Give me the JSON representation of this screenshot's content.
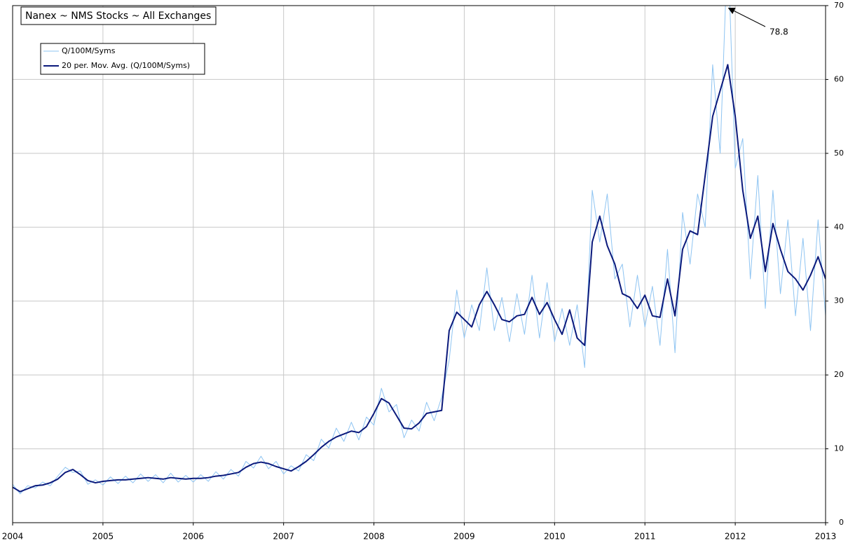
{
  "chart_data": {
    "type": "line",
    "title": "Nanex ~ NMS Stocks ~ All Exchanges",
    "annotation": "78.8",
    "x": [
      2004,
      2004.083,
      2004.167,
      2004.25,
      2004.333,
      2004.417,
      2004.5,
      2004.583,
      2004.667,
      2004.75,
      2004.833,
      2004.917,
      2005,
      2005.083,
      2005.167,
      2005.25,
      2005.333,
      2005.417,
      2005.5,
      2005.583,
      2005.667,
      2005.75,
      2005.833,
      2005.917,
      2006,
      2006.083,
      2006.167,
      2006.25,
      2006.333,
      2006.417,
      2006.5,
      2006.583,
      2006.667,
      2006.75,
      2006.833,
      2006.917,
      2007,
      2007.083,
      2007.167,
      2007.25,
      2007.333,
      2007.417,
      2007.5,
      2007.583,
      2007.667,
      2007.75,
      2007.833,
      2007.917,
      2008,
      2008.083,
      2008.167,
      2008.25,
      2008.333,
      2008.417,
      2008.5,
      2008.583,
      2008.667,
      2008.75,
      2008.833,
      2008.917,
      2009,
      2009.083,
      2009.167,
      2009.25,
      2009.333,
      2009.417,
      2009.5,
      2009.583,
      2009.667,
      2009.75,
      2009.833,
      2009.917,
      2010,
      2010.083,
      2010.167,
      2010.25,
      2010.333,
      2010.417,
      2010.5,
      2010.583,
      2010.667,
      2010.75,
      2010.833,
      2010.917,
      2011,
      2011.083,
      2011.167,
      2011.25,
      2011.333,
      2011.417,
      2011.5,
      2011.583,
      2011.667,
      2011.75,
      2011.833,
      2011.917,
      2012,
      2012.083,
      2012.167,
      2012.25,
      2012.333,
      2012.417,
      2012.5,
      2012.583,
      2012.667,
      2012.75,
      2012.833,
      2012.917,
      2013
    ],
    "series": [
      {
        "name": "Q/100M/Syms",
        "color": "#8ec4f2",
        "values": [
          5.2,
          3.9,
          5.0,
          4.7,
          5.5,
          5.0,
          6.3,
          7.5,
          6.8,
          7.0,
          5.2,
          5.8,
          5.1,
          6.2,
          5.3,
          6.3,
          5.4,
          6.6,
          5.6,
          6.5,
          5.4,
          6.7,
          5.5,
          6.4,
          5.5,
          6.5,
          5.6,
          6.9,
          5.9,
          7.2,
          6.3,
          8.3,
          7.4,
          9.0,
          7.3,
          8.3,
          6.6,
          7.7,
          7.0,
          9.2,
          8.4,
          11.3,
          10.1,
          12.8,
          11.0,
          13.6,
          11.2,
          14.3,
          13.2,
          18.2,
          15.0,
          16.0,
          11.5,
          13.9,
          12.4,
          16.3,
          13.8,
          17.0,
          22.0,
          31.5,
          25.0,
          29.5,
          26.0,
          34.5,
          26.0,
          30.5,
          24.5,
          31.0,
          25.5,
          33.5,
          25.0,
          32.5,
          24.5,
          29.0,
          24.0,
          29.5,
          21.0,
          45.0,
          38.0,
          44.5,
          33.0,
          35.0,
          26.5,
          33.5,
          26.5,
          32.0,
          24.0,
          37.0,
          23.0,
          42.0,
          35.0,
          44.5,
          40.0,
          62.0,
          50.0,
          78.8,
          48.0,
          52.0,
          33.0,
          47.0,
          29.0,
          45.0,
          31.0,
          41.0,
          28.0,
          38.5,
          26.0,
          41.0,
          28.0
        ]
      },
      {
        "name": "20 per. Mov. Avg. (Q/100M/Syms)",
        "color": "#0b1a7c",
        "values": [
          4.8,
          4.2,
          4.6,
          5.0,
          5.1,
          5.4,
          5.9,
          6.8,
          7.2,
          6.5,
          5.7,
          5.4,
          5.6,
          5.7,
          5.8,
          5.8,
          5.9,
          6.0,
          6.1,
          6.0,
          5.9,
          6.1,
          6.0,
          5.9,
          6.0,
          6.0,
          6.1,
          6.3,
          6.4,
          6.6,
          6.8,
          7.5,
          8.0,
          8.2,
          8.0,
          7.6,
          7.3,
          7.0,
          7.6,
          8.3,
          9.2,
          10.2,
          11.0,
          11.6,
          12.0,
          12.4,
          12.2,
          13.0,
          14.8,
          16.8,
          16.2,
          14.5,
          12.8,
          12.7,
          13.5,
          14.8,
          15.0,
          15.2,
          26.0,
          28.5,
          27.5,
          26.5,
          29.5,
          31.3,
          29.5,
          27.5,
          27.2,
          28.0,
          28.2,
          30.5,
          28.2,
          29.8,
          27.5,
          25.5,
          28.8,
          25.0,
          24.0,
          38.0,
          41.5,
          37.5,
          35.0,
          31.0,
          30.5,
          29.0,
          30.8,
          28.0,
          27.8,
          33.0,
          28.0,
          37.0,
          39.5,
          39.0,
          47.0,
          55.0,
          58.5,
          62.0,
          55.0,
          45.0,
          38.5,
          41.5,
          34.0,
          40.5,
          37.0,
          34.0,
          33.0,
          31.5,
          33.5,
          36.0,
          33.0
        ]
      }
    ],
    "xlim": [
      2004,
      2013
    ],
    "xticks": [
      2004,
      2005,
      2006,
      2007,
      2008,
      2009,
      2010,
      2011,
      2012,
      2013
    ],
    "ylim": [
      0,
      70
    ],
    "yticks": [
      0,
      10,
      20,
      30,
      40,
      50,
      60,
      70
    ],
    "grid": true,
    "legend": "upper left"
  }
}
